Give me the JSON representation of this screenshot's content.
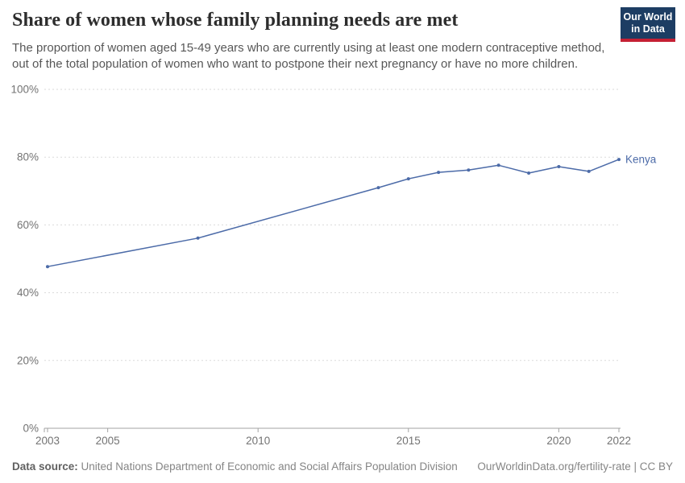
{
  "header": {
    "title": "Share of women whose family planning needs are met",
    "subtitle": "The proportion of women aged 15-49 years who are currently using at least one modern contraceptive method,\nout of the total population of women who want to postpone their next pregnancy or have no more children.",
    "logo": {
      "text": "Our World\nin Data",
      "bg_color": "#1d3d63",
      "accent_color": "#c52034"
    }
  },
  "chart_data": {
    "type": "line",
    "title": "Share of women whose family planning needs are met",
    "series": [
      {
        "name": "Kenya",
        "color": "#4c6ba8",
        "x": [
          2003,
          2008,
          2014,
          2015,
          2016,
          2017,
          2018,
          2019,
          2020,
          2021,
          2022
        ],
        "values": [
          47.7,
          56.1,
          71.0,
          73.6,
          75.5,
          76.2,
          77.6,
          75.3,
          77.2,
          75.8,
          79.3
        ]
      }
    ],
    "xlabel": "",
    "ylabel": "",
    "xlim": [
      2003,
      2022
    ],
    "ylim": [
      0,
      100
    ],
    "yticks": [
      0,
      20,
      40,
      60,
      80,
      100
    ],
    "ytick_suffix": "%",
    "xticks": [
      2003,
      2005,
      2010,
      2015,
      2020,
      2022
    ],
    "grid": "horizontal-dashed",
    "legend_position": "end-of-line-label",
    "colors": {
      "gridline": "#dadada",
      "axis": "#a3a3a3",
      "tick_label": "#737373"
    }
  },
  "footer": {
    "source_label": "Data source:",
    "source_text": " United Nations Department of Economic and Social Affairs Population Division",
    "link_text": "OurWorldinData.org/fertility-rate | CC BY"
  }
}
